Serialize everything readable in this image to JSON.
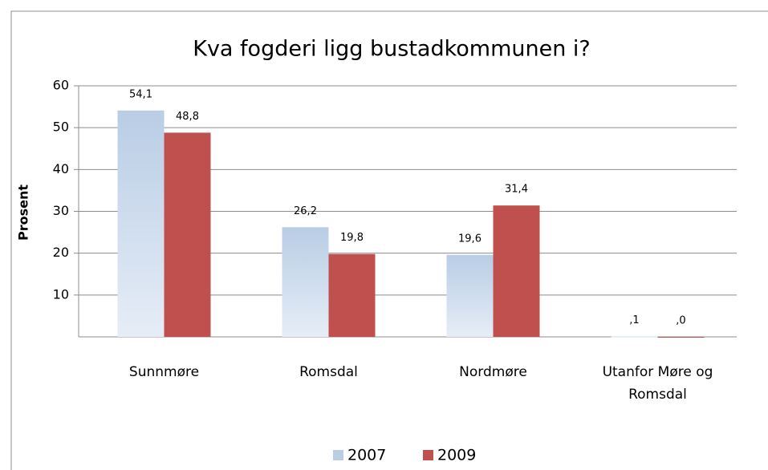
{
  "chart_data": {
    "type": "bar",
    "title": "Kva fogderi ligg bustadkommunen i?",
    "y_label": "Prosent",
    "categories": [
      "Sunnmøre",
      "Romsdal",
      "Nordmøre",
      "Utanfor Møre og Romsdal"
    ],
    "series": [
      {
        "name": "2007",
        "color": "#b9cde5",
        "values": [
          54.1,
          26.2,
          19.6,
          0.1
        ],
        "value_labels": [
          "54,1",
          "26,2",
          "19,6",
          ",1"
        ]
      },
      {
        "name": "2009",
        "color": "#c0504d",
        "values": [
          48.8,
          19.8,
          31.4,
          0
        ],
        "value_labels": [
          "48,8",
          "19,8",
          "31,4",
          ",0"
        ]
      }
    ],
    "ylim": [
      0,
      60
    ],
    "yticks": [
      10,
      20,
      30,
      40,
      50,
      60
    ],
    "grid": true,
    "legend": "bottom"
  }
}
